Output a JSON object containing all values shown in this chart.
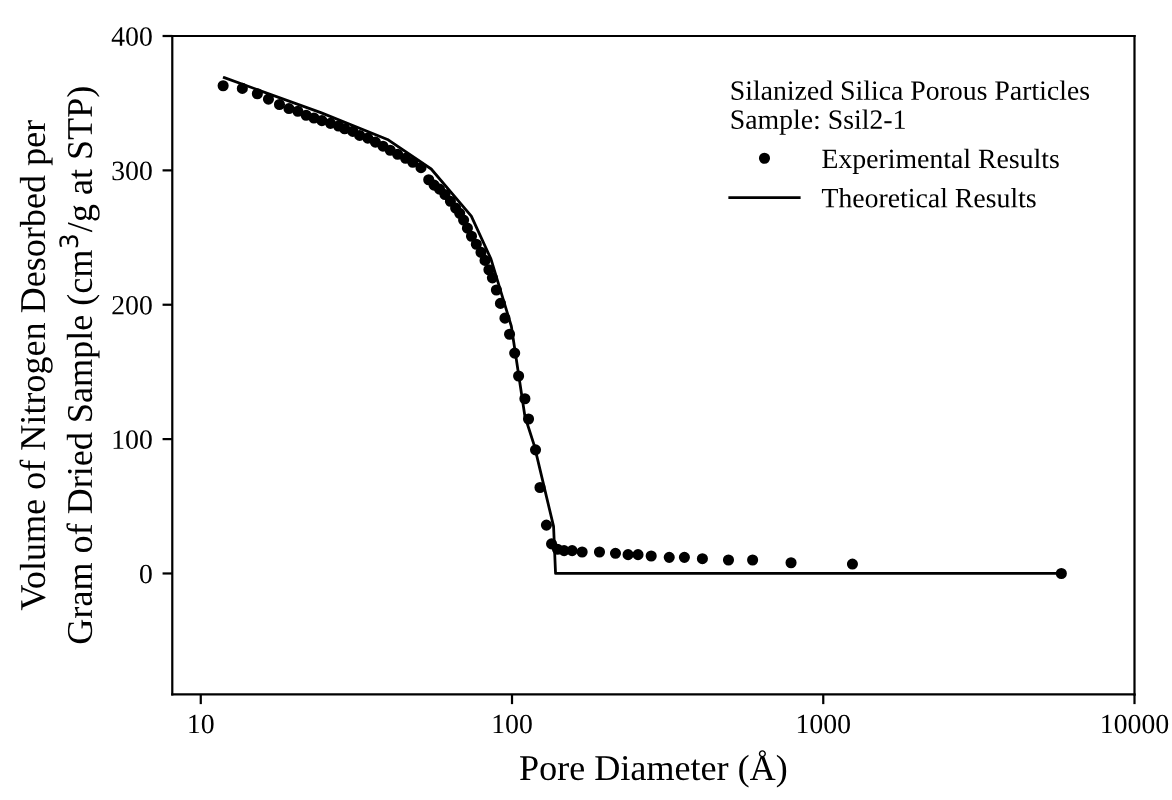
{
  "chart_data": {
    "type": "scatter",
    "xlabel": "Pore Diameter (Å)",
    "ylabel": "Volume of Nitrogen Desorbed per\nGram of Dried Sample (cm$^{3}$/g at STP)",
    "legend_title": "Silanized Silica Porous Particles\nSample: Ssil2-1",
    "log": "x",
    "xlim": [
      8.1,
      10000
    ],
    "xticks": [
      10,
      100,
      1000,
      10000
    ],
    "ylim": [
      -90,
      400
    ],
    "yticks": [
      0,
      100,
      200,
      300,
      400
    ],
    "grid": false,
    "legend": "top right",
    "series": [
      {
        "name": "Experimental Results",
        "marker": "circle",
        "color": "#000000",
        "x": [
          11.8,
          13.6,
          15.2,
          16.5,
          17.9,
          19.2,
          20.5,
          21.8,
          23.1,
          24.5,
          26.1,
          27.7,
          29.0,
          30.8,
          32.4,
          34.4,
          36.4,
          38.5,
          40.6,
          42.9,
          45.5,
          48.0,
          51,
          54,
          56.2,
          58.5,
          60.9,
          63.4,
          65.9,
          67.9,
          69.9,
          71.9,
          74.1,
          76.8,
          79.5,
          81.9,
          84.3,
          86.5,
          89.1,
          91.8,
          94.9,
          98.2,
          102,
          105,
          110,
          113,
          119,
          123,
          129,
          134,
          140,
          147,
          156,
          168,
          191,
          215,
          236,
          254,
          280,
          320,
          358,
          409,
          496,
          593,
          788,
          1241,
          5820
        ],
        "values": [
          363,
          361,
          357,
          353,
          349,
          346,
          344,
          341,
          339,
          337,
          335,
          333,
          331,
          329,
          326,
          324,
          321,
          318,
          315,
          312,
          309,
          306,
          302,
          293,
          289,
          286,
          282,
          277,
          272,
          268,
          263,
          257,
          251,
          245,
          239,
          233,
          226,
          220,
          211,
          201,
          190,
          178,
          164,
          147,
          130,
          115,
          92,
          64,
          36,
          22,
          18,
          17,
          17,
          16,
          16,
          15,
          14,
          14,
          13,
          12,
          12,
          11,
          10,
          10,
          8,
          7,
          0
        ]
      },
      {
        "name": "Theoretical Results",
        "type": "line",
        "marker": "none",
        "line_style": "solid",
        "color": "#000000",
        "x": [
          11.9,
          24.3,
          39.8,
          55,
          74,
          85.6,
          99.5,
          110,
          118,
          136,
          138,
          5820
        ],
        "values": [
          369,
          343,
          323,
          301,
          266,
          234,
          184,
          117,
          95,
          35,
          0,
          0
        ]
      }
    ]
  }
}
